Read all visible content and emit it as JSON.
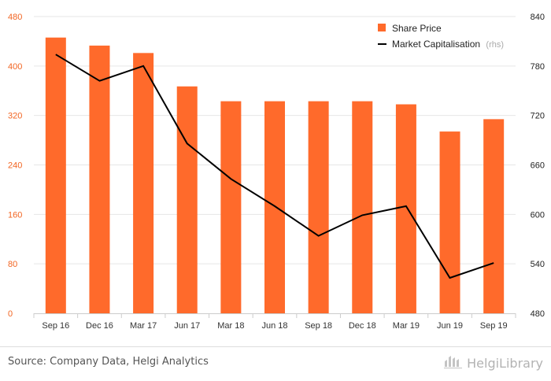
{
  "chart_data": {
    "type": "bar+line",
    "categories": [
      "Sep 16",
      "Dec 16",
      "Mar 17",
      "Jun 17",
      "Mar 18",
      "Jun 18",
      "Sep 18",
      "Dec 18",
      "Mar 19",
      "Jun 19",
      "Sep 19"
    ],
    "series": [
      {
        "name": "Share Price",
        "type": "bar",
        "axis": "left",
        "color": "#ff6a2b",
        "values": [
          446,
          433,
          421,
          367,
          343,
          343,
          343,
          343,
          338,
          294,
          314
        ]
      },
      {
        "name": "Market Capitalisation",
        "type": "line",
        "axis": "right",
        "color": "#000000",
        "values": [
          794,
          762,
          780,
          686,
          643,
          610,
          574,
          599,
          610,
          523,
          541
        ]
      }
    ],
    "y_left": {
      "min": 0,
      "max": 480,
      "ticks": [
        "0",
        "80",
        "160",
        "240",
        "320",
        "400",
        "480"
      ]
    },
    "y_right": {
      "min": 480,
      "max": 840,
      "ticks": [
        "480",
        "540",
        "600",
        "660",
        "720",
        "780",
        "840"
      ]
    },
    "legend": {
      "position": "top-right",
      "rhs_note": "(rhs)"
    },
    "grid": true
  },
  "footer": {
    "source": "Source: Company Data, Helgi Analytics",
    "brand": "HelgiLibrary"
  }
}
